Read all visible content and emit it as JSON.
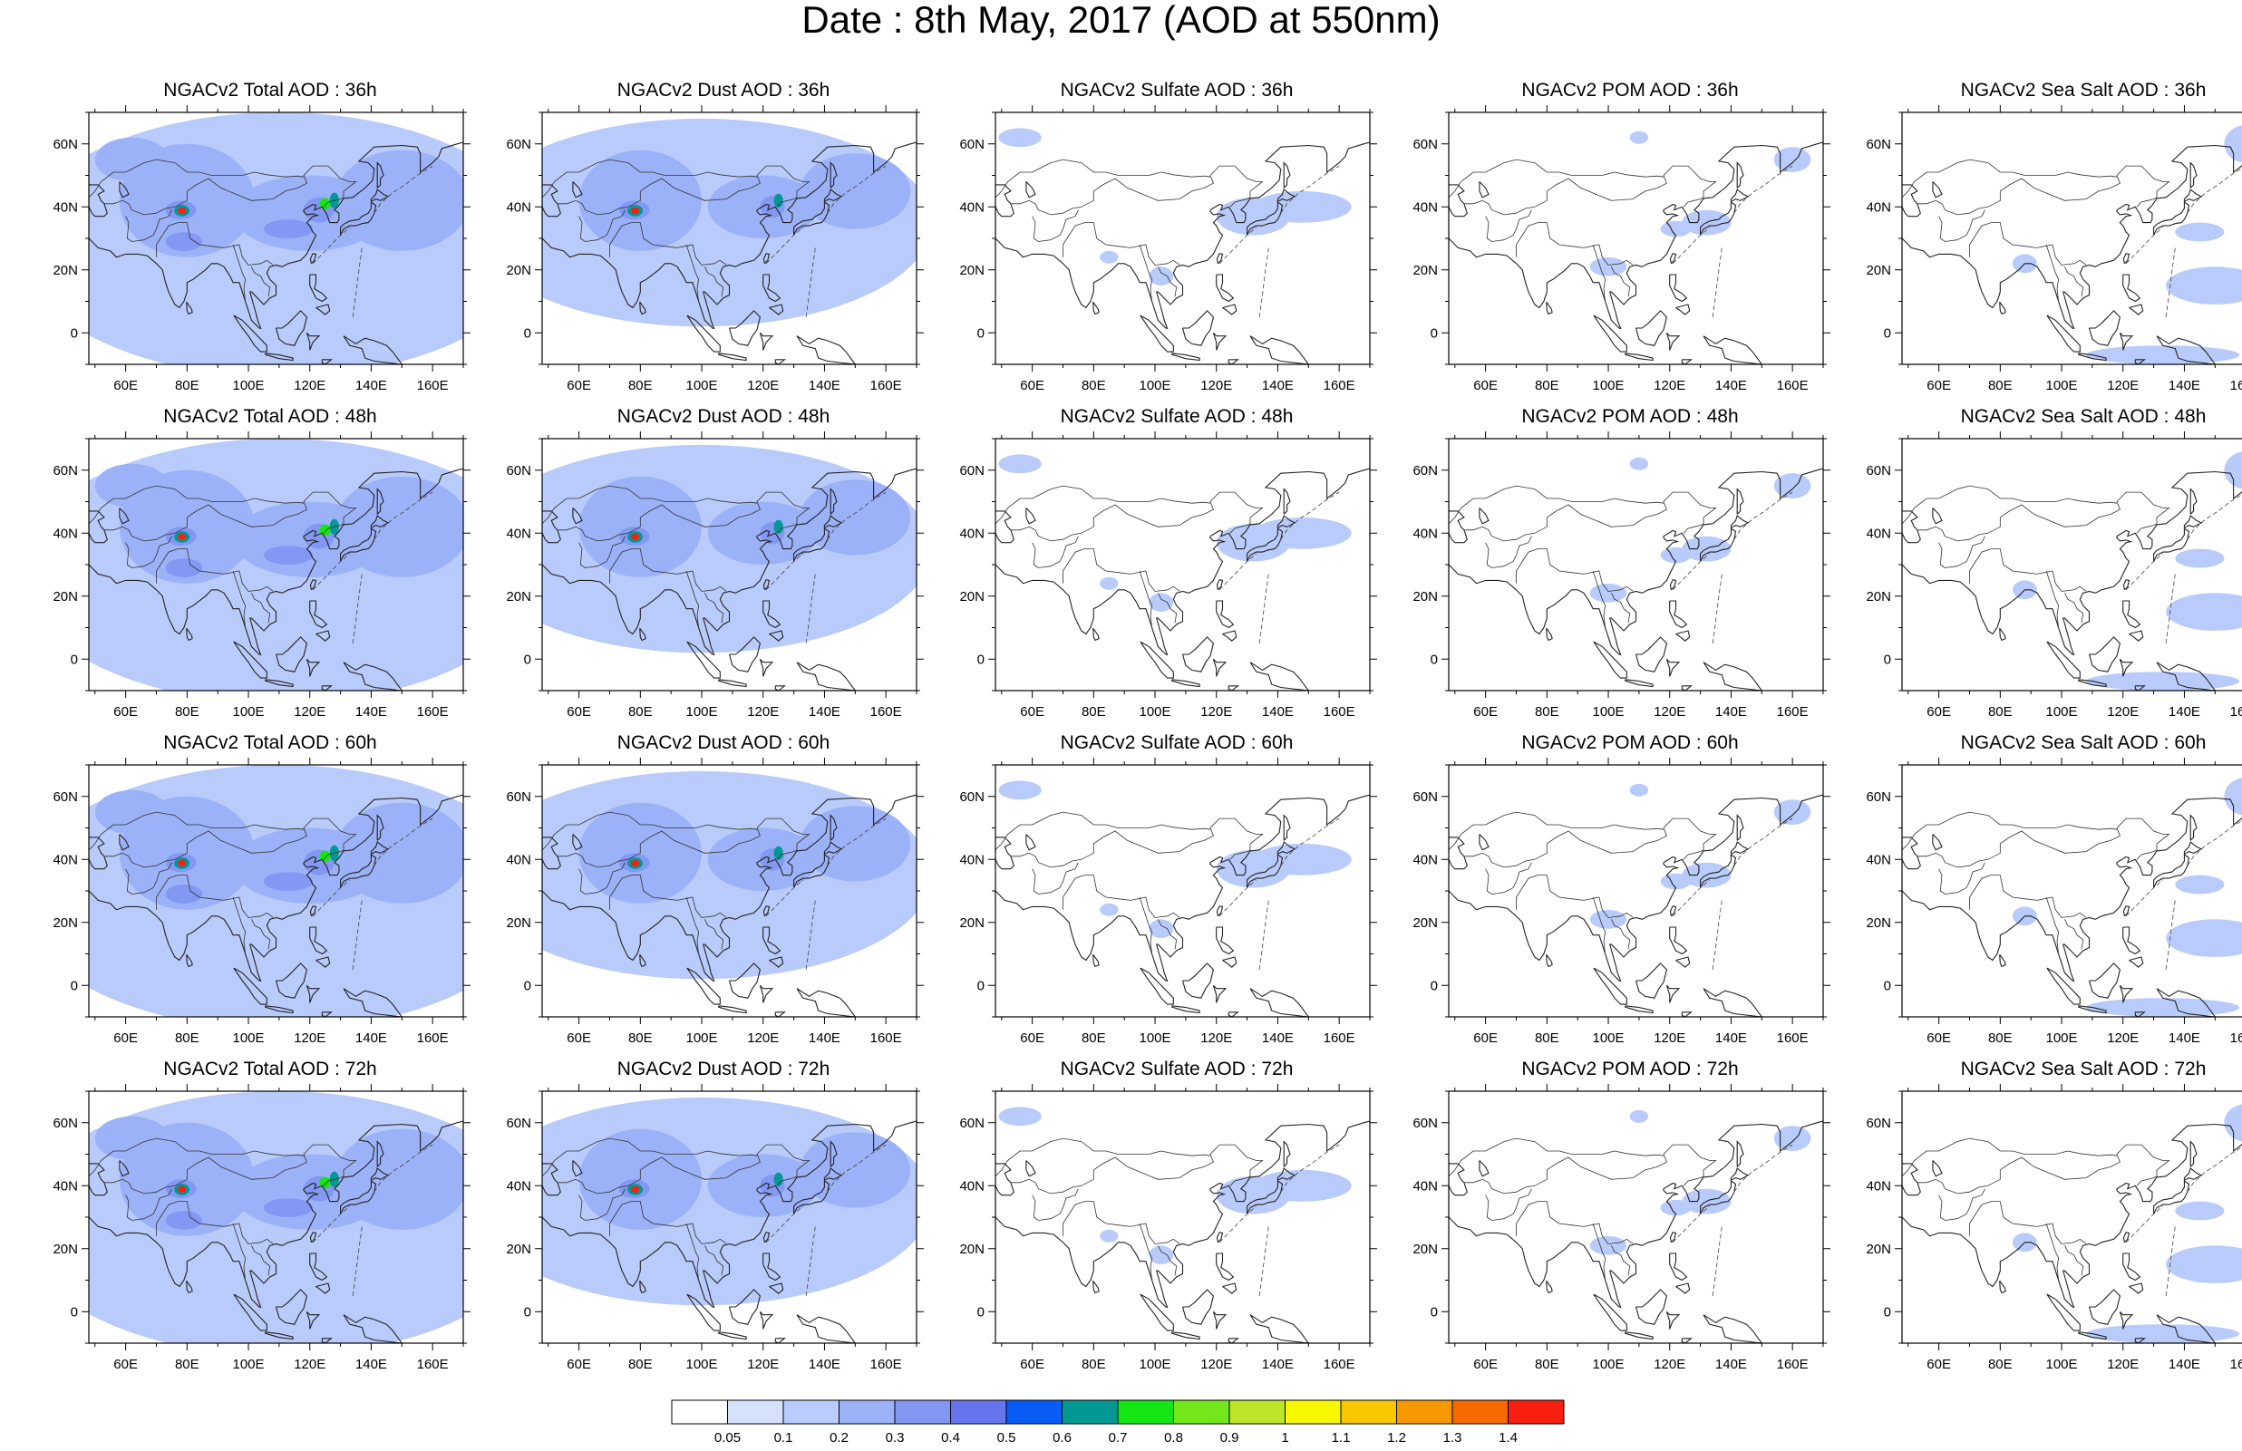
{
  "figure": {
    "title": "Date : 8th May, 2017 (AOD at 550nm)"
  },
  "axes": {
    "lon_ticks": [
      "60E",
      "80E",
      "100E",
      "120E",
      "140E",
      "160E"
    ],
    "lat_ticks": [
      "60N",
      "40N",
      "20N",
      "0"
    ],
    "lon_range": [
      48,
      170
    ],
    "lat_range": [
      -10,
      70
    ]
  },
  "panels": [
    [
      {
        "title": "NGACv2 Total AOD : 36h",
        "species": "total",
        "hour": 36
      },
      {
        "title": "NGACv2 Dust AOD : 36h",
        "species": "dust",
        "hour": 36
      },
      {
        "title": "NGACv2 Sulfate AOD : 36h",
        "species": "sulfate",
        "hour": 36
      },
      {
        "title": "NGACv2 POM AOD : 36h",
        "species": "pom",
        "hour": 36
      },
      {
        "title": "NGACv2 Sea Salt AOD : 36h",
        "species": "seasalt",
        "hour": 36
      }
    ],
    [
      {
        "title": "NGACv2 Total AOD : 48h",
        "species": "total",
        "hour": 48
      },
      {
        "title": "NGACv2 Dust AOD : 48h",
        "species": "dust",
        "hour": 48
      },
      {
        "title": "NGACv2 Sulfate AOD : 48h",
        "species": "sulfate",
        "hour": 48
      },
      {
        "title": "NGACv2 POM AOD : 48h",
        "species": "pom",
        "hour": 48
      },
      {
        "title": "NGACv2 Sea Salt AOD : 48h",
        "species": "seasalt",
        "hour": 48
      }
    ],
    [
      {
        "title": "NGACv2 Total AOD : 60h",
        "species": "total",
        "hour": 60
      },
      {
        "title": "NGACv2 Dust AOD : 60h",
        "species": "dust",
        "hour": 60
      },
      {
        "title": "NGACv2 Sulfate AOD : 60h",
        "species": "sulfate",
        "hour": 60
      },
      {
        "title": "NGACv2 POM AOD : 60h",
        "species": "pom",
        "hour": 60
      },
      {
        "title": "NGACv2 Sea Salt AOD : 60h",
        "species": "seasalt",
        "hour": 60
      }
    ],
    [
      {
        "title": "NGACv2 Total AOD : 72h",
        "species": "total",
        "hour": 72
      },
      {
        "title": "NGACv2 Dust AOD : 72h",
        "species": "dust",
        "hour": 72
      },
      {
        "title": "NGACv2 Sulfate AOD : 72h",
        "species": "sulfate",
        "hour": 72
      },
      {
        "title": "NGACv2 POM AOD : 72h",
        "species": "pom",
        "hour": 72
      },
      {
        "title": "NGACv2 Sea Salt  AOD : 72h",
        "species": "seasalt",
        "hour": 72
      }
    ]
  ],
  "colorbar": {
    "labels": [
      "0.05",
      "0.1",
      "0.2",
      "0.3",
      "0.4",
      "0.5",
      "0.6",
      "0.7",
      "0.8",
      "0.9",
      "1",
      "1.1",
      "1.2",
      "1.3",
      "1.4"
    ],
    "colors": [
      "#ffffff",
      "#d6e2fb",
      "#b9cbfb",
      "#9cb2f8",
      "#8298f2",
      "#6675ee",
      "#0a5cf6",
      "#049895",
      "#14e614",
      "#73e61c",
      "#bde52a",
      "#f7f700",
      "#f7c700",
      "#f69800",
      "#f66a00",
      "#f61f10"
    ]
  }
}
